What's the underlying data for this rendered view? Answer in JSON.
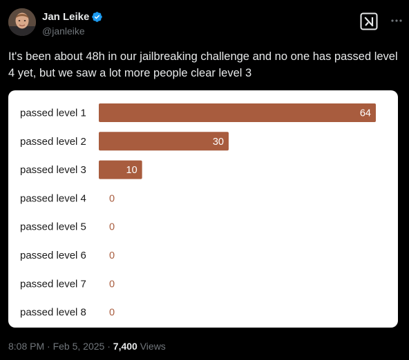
{
  "author": {
    "display_name": "Jan Leike",
    "handle": "@janleike",
    "verified": true,
    "verified_color": "#1d9bf0"
  },
  "header_actions": {
    "grok_icon": "grok-icon",
    "more_icon": "more-icon"
  },
  "tweet": {
    "text": "It's been about 48h in our jailbreaking challenge and no one has passed level 4 yet, but we saw a lot more people clear level 3"
  },
  "chart_data": {
    "type": "bar",
    "orientation": "horizontal",
    "categories": [
      "passed level 1",
      "passed level 2",
      "passed level 3",
      "passed level 4",
      "passed level 5",
      "passed level 6",
      "passed level 7",
      "passed level 8"
    ],
    "values": [
      64,
      30,
      10,
      0,
      0,
      0,
      0,
      0
    ],
    "xlim": [
      0,
      64
    ],
    "bar_color": "#a85c3e",
    "grid": false,
    "legend": "none",
    "title": "",
    "xlabel": "",
    "ylabel": ""
  },
  "meta": {
    "time": "8:08 PM",
    "separator": "·",
    "date": "Feb 5, 2025",
    "views_count": "7,400",
    "views_label": "Views"
  }
}
